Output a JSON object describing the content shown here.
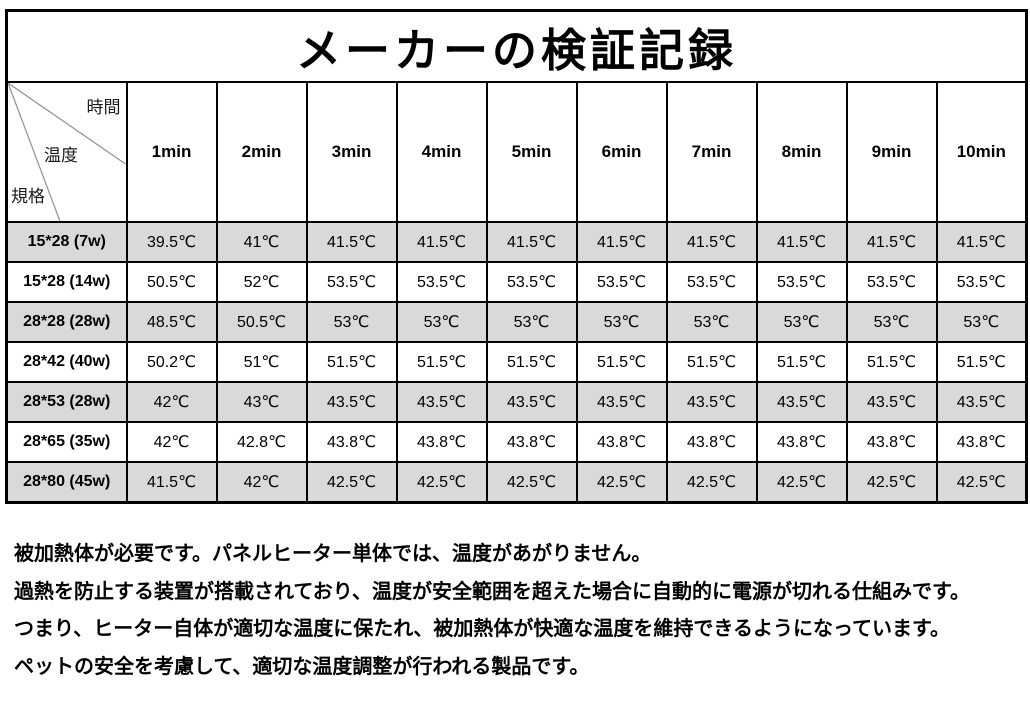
{
  "title": "メーカーの検証記録",
  "table": {
    "corner": {
      "time_label": "時間",
      "temp_label": "温度",
      "spec_label": "規格"
    },
    "time_headers": [
      "1min",
      "2min",
      "3min",
      "4min",
      "5min",
      "6min",
      "7min",
      "8min",
      "9min",
      "10min"
    ],
    "rows": [
      {
        "spec": "15*28 (7w)",
        "shaded": true,
        "values": [
          "39.5℃",
          "41℃",
          "41.5℃",
          "41.5℃",
          "41.5℃",
          "41.5℃",
          "41.5℃",
          "41.5℃",
          "41.5℃",
          "41.5℃"
        ]
      },
      {
        "spec": "15*28 (14w)",
        "shaded": false,
        "values": [
          "50.5℃",
          "52℃",
          "53.5℃",
          "53.5℃",
          "53.5℃",
          "53.5℃",
          "53.5℃",
          "53.5℃",
          "53.5℃",
          "53.5℃"
        ]
      },
      {
        "spec": "28*28 (28w)",
        "shaded": true,
        "values": [
          "48.5℃",
          "50.5℃",
          "53℃",
          "53℃",
          "53℃",
          "53℃",
          "53℃",
          "53℃",
          "53℃",
          "53℃"
        ]
      },
      {
        "spec": "28*42 (40w)",
        "shaded": false,
        "values": [
          "50.2℃",
          "51℃",
          "51.5℃",
          "51.5℃",
          "51.5℃",
          "51.5℃",
          "51.5℃",
          "51.5℃",
          "51.5℃",
          "51.5℃"
        ]
      },
      {
        "spec": "28*53 (28w)",
        "shaded": true,
        "values": [
          "42℃",
          "43℃",
          "43.5℃",
          "43.5℃",
          "43.5℃",
          "43.5℃",
          "43.5℃",
          "43.5℃",
          "43.5℃",
          "43.5℃"
        ]
      },
      {
        "spec": "28*65 (35w)",
        "shaded": false,
        "values": [
          "42℃",
          "42.8℃",
          "43.8℃",
          "43.8℃",
          "43.8℃",
          "43.8℃",
          "43.8℃",
          "43.8℃",
          "43.8℃",
          "43.8℃"
        ]
      },
      {
        "spec": "28*80 (45w)",
        "shaded": true,
        "values": [
          "41.5℃",
          "42℃",
          "42.5℃",
          "42.5℃",
          "42.5℃",
          "42.5℃",
          "42.5℃",
          "42.5℃",
          "42.5℃",
          "42.5℃"
        ]
      }
    ]
  },
  "notes": {
    "lines": [
      "被加熱体が必要です。パネルヒーター単体では、温度があがりません。",
      "過熱を防止する装置が搭載されており、温度が安全範囲を超えた場合に自動的に電源が切れる仕組みです。",
      "つまり、ヒーター自体が適切な温度に保たれ、被加熱体が快適な温度を維持できるようになっています。",
      "ペットの安全を考慮して、適切な温度調整が行われる製品です。"
    ]
  },
  "colors": {
    "shaded_row": "#d9d9d9",
    "border": "#000000",
    "diagonal_line": "#8f8f8f"
  }
}
